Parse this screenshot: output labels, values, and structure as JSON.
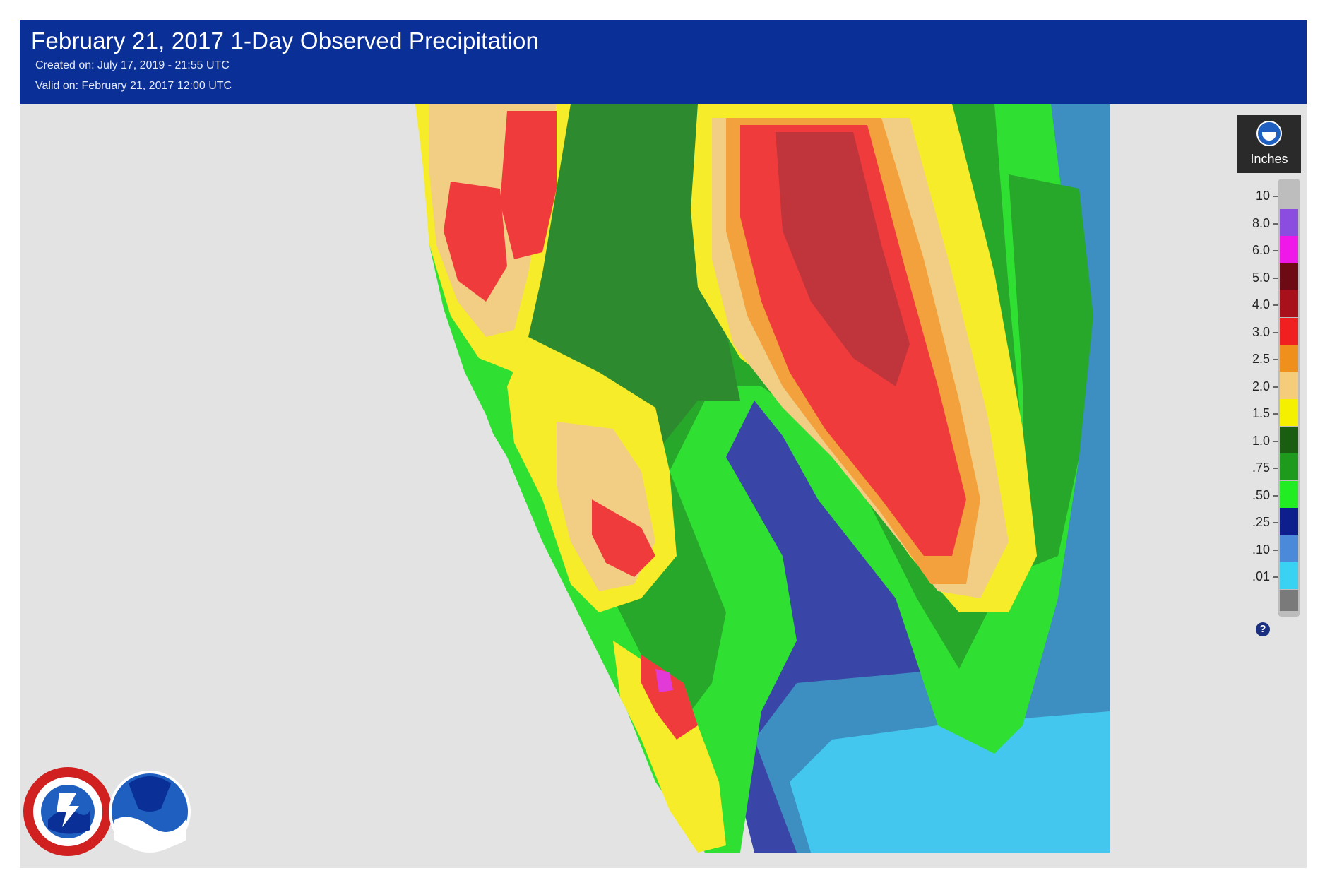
{
  "header": {
    "title": "February 21, 2017 1-Day Observed Precipitation",
    "created": "Created on: July 17, 2019 - 21:55 UTC",
    "valid": "Valid on: February 21, 2017 12:00 UTC",
    "background_color": "#0a2f96"
  },
  "legend": {
    "unit": "Inches",
    "header_icon": "noaa-icon",
    "help_icon": "question-icon",
    "help_symbol": "?",
    "bins": [
      {
        "label": "10",
        "color": "#bdbdbd"
      },
      {
        "label": "8.0",
        "color": "#8a4de0"
      },
      {
        "label": "6.0",
        "color": "#f018e8"
      },
      {
        "label": "5.0",
        "color": "#6e0a14"
      },
      {
        "label": "4.0",
        "color": "#a8101a"
      },
      {
        "label": "3.0",
        "color": "#f02020"
      },
      {
        "label": "2.5",
        "color": "#f0901c"
      },
      {
        "label": "2.0",
        "color": "#f5cd7a"
      },
      {
        "label": "1.5",
        "color": "#f4f000"
      },
      {
        "label": "1.0",
        "color": "#1a5e12"
      },
      {
        "label": ".75",
        "color": "#1e9a1c"
      },
      {
        "label": ".50",
        "color": "#22ec22"
      },
      {
        "label": ".25",
        "color": "#0e1e8c"
      },
      {
        "label": ".10",
        "color": "#4a8ad8"
      },
      {
        "label": ".01",
        "color": "#3ad2f2"
      }
    ],
    "below_lowest_color": "#7a7a7a"
  },
  "logos": [
    "national-weather-service-logo",
    "noaa-logo"
  ],
  "map": {
    "background_color": "#e3e3e3",
    "colors": {
      "gray": "#e3e3e3",
      "lt_cyan": "#43c7ef",
      "steel": "#3c8fc0",
      "navy": "#3a45a8",
      "lime": "#2fdf31",
      "green": "#27a82b",
      "dk_green": "#2e8a2e",
      "yellow": "#f6ec2a",
      "tan": "#f2cd84",
      "orange": "#f3a13c",
      "red": "#ef3b3b",
      "dk_red": "#c0353c",
      "magenta": "#e23ad6"
    }
  }
}
